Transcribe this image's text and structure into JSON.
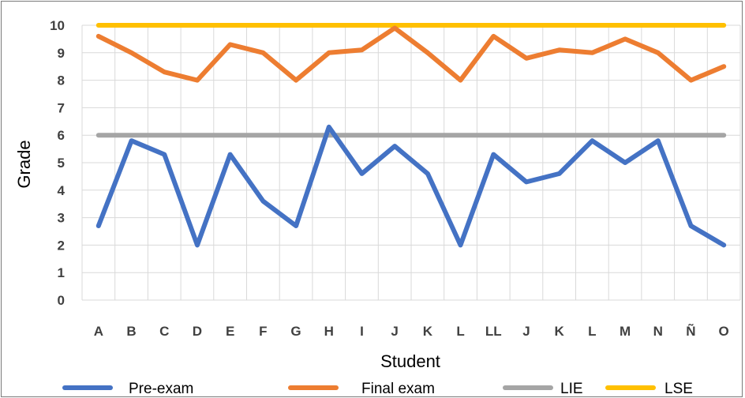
{
  "chart_data": {
    "type": "line",
    "categories": [
      "A",
      "B",
      "C",
      "D",
      "E",
      "F",
      "G",
      "H",
      "I",
      "J",
      "K",
      "L",
      "LL",
      "J",
      "K",
      "L",
      "M",
      "N",
      "Ñ",
      "O"
    ],
    "series": [
      {
        "name": "Pre-exam",
        "color": "#4472C4",
        "values": [
          2.7,
          5.8,
          5.3,
          2.0,
          5.3,
          3.6,
          2.7,
          6.3,
          4.6,
          5.6,
          4.6,
          2.0,
          5.3,
          4.3,
          4.6,
          5.8,
          5.0,
          5.8,
          2.7,
          2.0
        ]
      },
      {
        "name": "Final exam",
        "color": "#ED7D31",
        "values": [
          9.6,
          9.0,
          8.3,
          8.0,
          9.3,
          9.0,
          8.0,
          9.0,
          9.1,
          9.9,
          9.0,
          8.0,
          9.6,
          8.8,
          9.1,
          9.0,
          9.5,
          9.0,
          8.0,
          8.5
        ]
      },
      {
        "name": "LIE",
        "color": "#A5A5A5",
        "values": [
          6,
          6,
          6,
          6,
          6,
          6,
          6,
          6,
          6,
          6,
          6,
          6,
          6,
          6,
          6,
          6,
          6,
          6,
          6,
          6
        ]
      },
      {
        "name": "LSE",
        "color": "#FFC000",
        "values": [
          10,
          10,
          10,
          10,
          10,
          10,
          10,
          10,
          10,
          10,
          10,
          10,
          10,
          10,
          10,
          10,
          10,
          10,
          10,
          10
        ]
      }
    ],
    "yticks": [
      "0",
      "1",
      "2",
      "3",
      "4",
      "5",
      "6",
      "7",
      "8",
      "9",
      "10"
    ],
    "ylim": [
      0,
      10
    ],
    "xlabel": "Student",
    "ylabel": "Grade",
    "grid": true,
    "legend_position": "bottom"
  }
}
